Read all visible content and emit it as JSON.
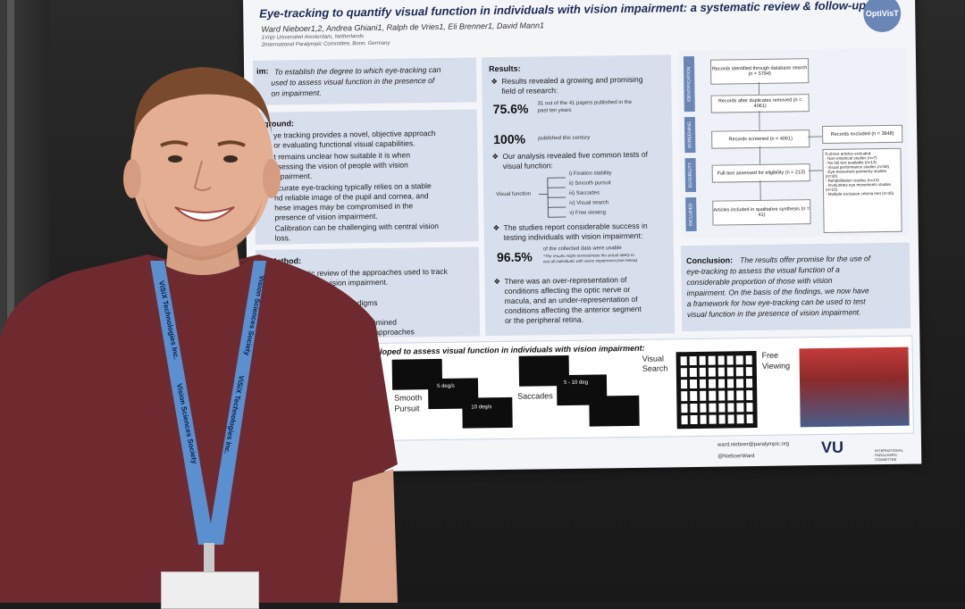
{
  "poster": {
    "title": "Eye-tracking to quantify visual function in individuals with vision impairment: a systematic review & follow-up",
    "authors": "Ward Nieboer1,2, Andrea Ghiani1, Ralph de Vries1, Eli Brenner1, David Mann1",
    "affiliation_1": "1Vrije Universiteit Amsterdam, Netherlands",
    "affiliation_2": "2International Paralympic Committee, Bonn, Germany",
    "logo": "OptiVisT",
    "aim_label": "im:",
    "aim_text": [
      "To establish the degree to which eye-tracking can",
      "used to assess visual function in the presence of",
      "on impairment."
    ],
    "background_heading": "kground:",
    "background_lines": [
      "ye tracking provides a novel, objective approach",
      "or evaluating functional visual capabilities.",
      "t remains unclear how suitable it is when",
      "ssessing the vision of people with vision",
      "mpairment.",
      "ccurate eye-tracking typically relies on a stable",
      "nd reliable image of the pupil and cornea, and",
      "hese images may be compromised in the",
      "presence of vision impairment.",
      "Calibration can be challenging with central vision",
      "loss."
    ],
    "method_heading": "Method:",
    "method_lines": [
      "systematic review of the approaches used to track",
      "ements in vision impairment.",
      "paradigms",
      "examined",
      "ese approaches"
    ],
    "results_heading": "Results:",
    "results_intro": [
      "Results revealed a growing and promising",
      "field of research:"
    ],
    "stat1_value": "75.6%",
    "stat1_text": [
      "31 out of the 41 papers published in the",
      "past ten years"
    ],
    "stat2_value": "100%",
    "stat2_text": "published this century",
    "tests_intro": [
      "Our analysis revealed five common tests of",
      "visual function:"
    ],
    "visual_function_label": "Visual function",
    "tests": [
      "i) Fixation stability",
      "ii) Smooth pursuit",
      "iii) Saccades",
      "iv) Visual search",
      "v) Free viewing"
    ],
    "success_intro": [
      "The studies report considerable success in",
      "testing individuals with vision impairment:"
    ],
    "stat3_value": "96.5%",
    "stat3_text": [
      "of the collected data were usable",
      "*The results might overestimate the actual ability to",
      "test all individuals with vision impairment (see below)"
    ],
    "representation_lines": [
      "There was an over-representation of",
      "conditions affecting the optic nerve or",
      "macula, and an under-representation of",
      "conditions affecting the anterior segment",
      "or the peripheral retina."
    ],
    "flow_labels": [
      "IDENTIFICATION",
      "SCREENING",
      "ELIGIBILITY",
      "INCLUDED"
    ],
    "flow_boxes": [
      "Records identified through database search (n = 5794)",
      "Records after duplicates removed (n = 4061)",
      "Records screened (n = 4061)",
      "Records excluded (n = 3848)",
      "Full-text assessed for eligibility (n = 213)",
      "Articles included in qualitative synthesis (n = 41)"
    ],
    "flow_exclusions": [
      "Full-text articles excluded:",
      "- Non-empirical studies (n=7)",
      "- No full text available (n=13)",
      "- Visual performance studies (n=58)",
      "- Eye-movement perimetry studies (n=30)",
      "- Rehabilitation studies (n=14)",
      "- Involuntary eye movements studies (n=15)",
      "- Multiple exclusion criteria met (n=35)"
    ],
    "conclusion_label": "Conclusion:",
    "conclusion_lines": [
      "The results offer promise for the use of",
      "eye-tracking to assess the visual function of a",
      "considerable proportion of those with vision",
      "impairment. On the basis of the findings, we now have",
      "a framework for how eye-tracking can be used to test",
      "visual function in the presence of vision impairment."
    ],
    "battery_heading": "attery of eye movements developed to assess visual function in individuals with vision impairment:",
    "battery_labels": [
      "Smooth",
      "Pursuit",
      "Saccades",
      "Visual",
      "Search",
      "Free",
      "Viewing"
    ],
    "stimulus_labels": [
      "5 deg/s",
      "10 deg/s",
      "5 - 10 deg"
    ],
    "footer_email": "ward.nieboer@paralympic.org",
    "footer_handle": "@NieboerWard",
    "footer_vu": "VU",
    "footer_ipc": "INTERNATIONAL PARALYMPIC COMMITTEE"
  },
  "lanyard": {
    "text_1": "ViSiX Technologies Inc.",
    "text_2": "Vision Sciences Society",
    "text_3": "Vision Sciences Society",
    "text_4": "ViSiX Technologies Inc."
  },
  "colors": {
    "poster_accent": "#6a86b6",
    "panel_blue": "#d8dfec",
    "shirt": "#6e2a2f",
    "lanyard": "#5a8fd0"
  }
}
